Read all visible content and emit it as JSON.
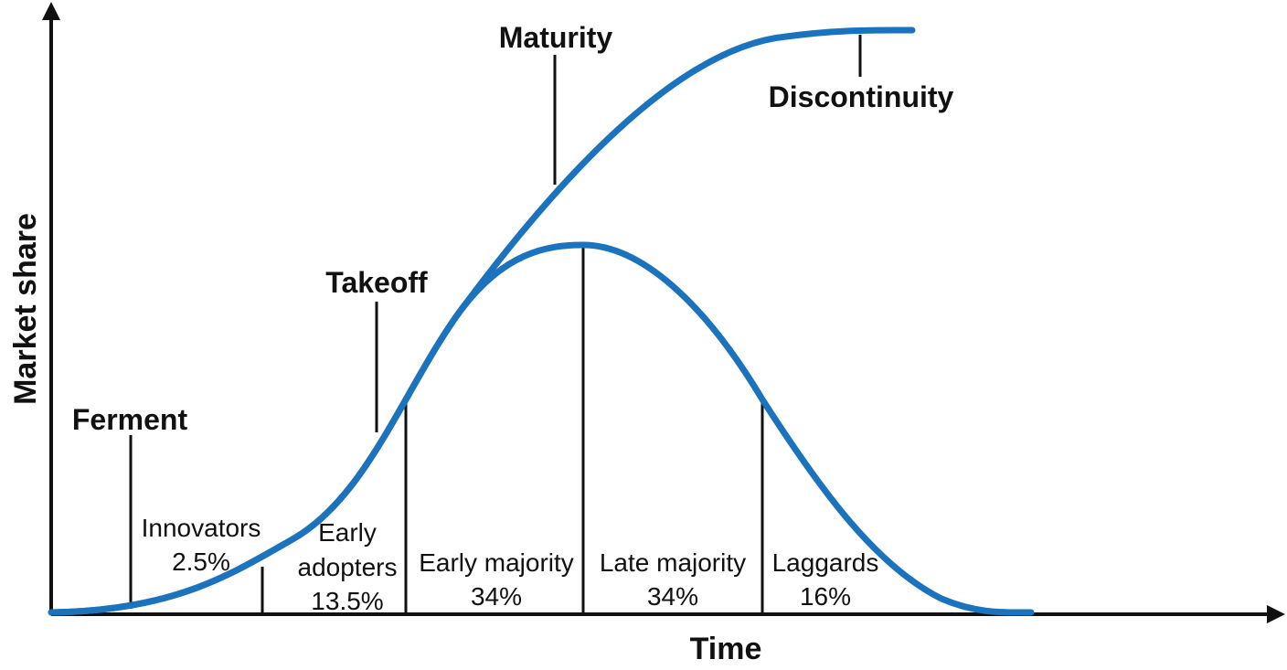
{
  "axes": {
    "x_label": "Time",
    "y_label": "Market share"
  },
  "stages": {
    "ferment": "Ferment",
    "takeoff": "Takeoff",
    "maturity": "Maturity",
    "discontinuity": "Discontinuity"
  },
  "segments": [
    {
      "line1": "Innovators",
      "line2": "2.5%"
    },
    {
      "line1": "Early",
      "line2": "adopters",
      "line3": "13.5%"
    },
    {
      "line1": "Early majority",
      "line2": "34%"
    },
    {
      "line1": "Late majority",
      "line2": "34%"
    },
    {
      "line1": "Laggards",
      "line2": "16%"
    }
  ],
  "colors": {
    "curve": "#1b72bd",
    "ink": "#111111"
  }
}
